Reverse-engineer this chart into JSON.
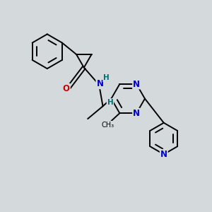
{
  "bg_color": "#d4d9dc",
  "bond_color": "#000000",
  "N_color": "#0000cc",
  "O_color": "#cc0000",
  "H_color": "#007070",
  "line_width": 1.4,
  "font_size": 8.5,
  "figsize": [
    3.0,
    3.0
  ],
  "dpi": 100,
  "xlim": [
    0,
    10
  ],
  "ylim": [
    0,
    10
  ]
}
